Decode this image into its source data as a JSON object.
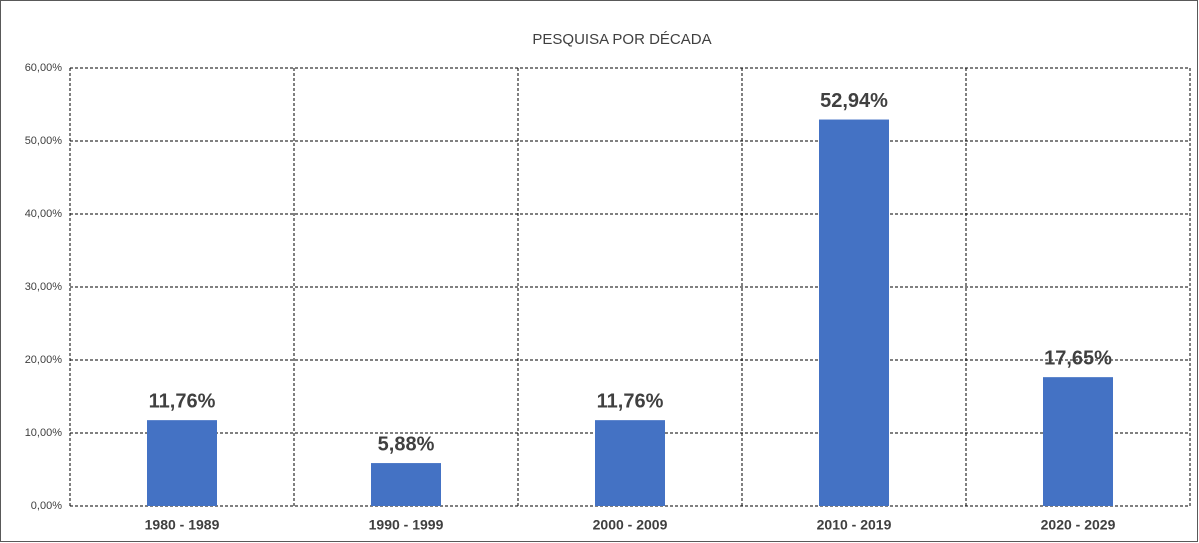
{
  "chart_data": {
    "type": "bar",
    "title": "PESQUISA POR DÉCADA",
    "categories": [
      "1980 - 1989",
      "1990 - 1999",
      "2000 - 2009",
      "2010 - 2019",
      "2020 - 2029"
    ],
    "values": [
      11.76,
      5.88,
      11.76,
      52.94,
      17.65
    ],
    "value_labels": [
      "11,76%",
      "5,88%",
      "11,76%",
      "52,94%",
      "17,65%"
    ],
    "color": "#4472c4",
    "ylim": [
      0,
      60
    ],
    "yticks": [
      {
        "value": 0,
        "label": "0,00%"
      },
      {
        "value": 10,
        "label": "10,00%"
      },
      {
        "value": 20,
        "label": "20,00%"
      },
      {
        "value": 30,
        "label": "30,00%"
      },
      {
        "value": 40,
        "label": "40,00%"
      },
      {
        "value": 50,
        "label": "50,00%"
      },
      {
        "value": 60,
        "label": "60,00%"
      }
    ],
    "grid": true
  }
}
